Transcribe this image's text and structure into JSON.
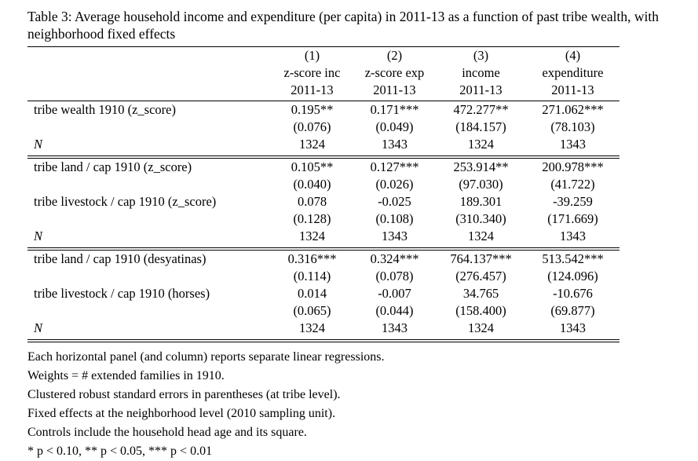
{
  "title": "Table 3: Average household income and expenditure (per capita) in 2011-13 as a function of past tribe wealth, with neighborhood fixed effects",
  "table": {
    "columns": [
      {
        "number": "(1)",
        "line1": "z-score inc",
        "line2": "2011-13"
      },
      {
        "number": "(2)",
        "line1": "z-score exp",
        "line2": "2011-13"
      },
      {
        "number": "(3)",
        "line1": "income",
        "line2": "2011-13"
      },
      {
        "number": "(4)",
        "line1": "expenditure",
        "line2": "2011-13"
      }
    ],
    "panels": [
      {
        "rows": [
          {
            "label": "tribe wealth 1910 (z_score)",
            "values": [
              "0.195**",
              "0.171***",
              "472.277**",
              "271.062***"
            ]
          },
          {
            "label": "",
            "values": [
              "(0.076)",
              "(0.049)",
              "(184.157)",
              "(78.103)"
            ]
          },
          {
            "label": "N",
            "values": [
              "1324",
              "1343",
              "1324",
              "1343"
            ]
          }
        ]
      },
      {
        "rows": [
          {
            "label": "tribe land / cap 1910 (z_score)",
            "values": [
              "0.105**",
              "0.127***",
              "253.914**",
              "200.978***"
            ]
          },
          {
            "label": "",
            "values": [
              "(0.040)",
              "(0.026)",
              "(97.030)",
              "(41.722)"
            ]
          },
          {
            "label": "tribe livestock / cap 1910 (z_score)",
            "values": [
              "0.078",
              "-0.025",
              "189.301",
              "-39.259"
            ]
          },
          {
            "label": "",
            "values": [
              "(0.128)",
              "(0.108)",
              "(310.340)",
              "(171.669)"
            ]
          },
          {
            "label": "N",
            "values": [
              "1324",
              "1343",
              "1324",
              "1343"
            ]
          }
        ]
      },
      {
        "rows": [
          {
            "label": "tribe land / cap 1910 (desyatinas)",
            "values": [
              "0.316***",
              "0.324***",
              "764.137***",
              "513.542***"
            ]
          },
          {
            "label": "",
            "values": [
              "(0.114)",
              "(0.078)",
              "(276.457)",
              "(124.096)"
            ]
          },
          {
            "label": "tribe livestock / cap 1910 (horses)",
            "values": [
              "0.014",
              "-0.007",
              "34.765",
              "-10.676"
            ]
          },
          {
            "label": "",
            "values": [
              "(0.065)",
              "(0.044)",
              "(158.400)",
              "(69.877)"
            ]
          },
          {
            "label": "N",
            "values": [
              "1324",
              "1343",
              "1324",
              "1343"
            ]
          }
        ]
      }
    ]
  },
  "notes": [
    "Each horizontal panel (and column) reports separate linear regressions.",
    "Weights = # extended families in 1910.",
    "Clustered robust standard errors in parentheses (at tribe level).",
    "Fixed effects at the neighborhood level (2010 sampling unit).",
    "Controls include the household head age and its square.",
    "* p < 0.10, ** p < 0.05, *** p < 0.01"
  ],
  "colors": {
    "text": "#000000",
    "background": "#ffffff"
  }
}
